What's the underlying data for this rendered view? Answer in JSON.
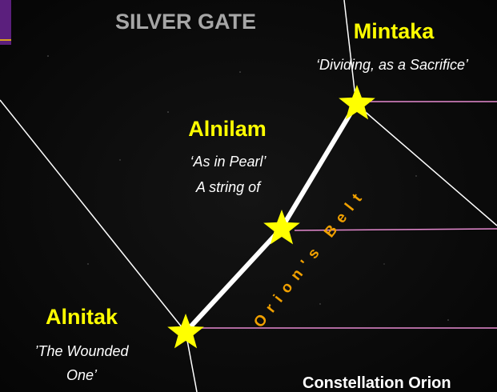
{
  "header": {
    "title": "SILVER GATE"
  },
  "stars": [
    {
      "name": "Mintaka",
      "meaning": [
        "‘Dividing, as a Sacrifice’"
      ]
    },
    {
      "name": "Alnilam",
      "meaning": [
        "‘As in Pearl’",
        "A string of"
      ]
    },
    {
      "name": "Alnitak",
      "meaning": [
        "’The Wounded",
        "One’"
      ]
    }
  ],
  "belt_label": "Orion's Belt",
  "caption": "Constellation Orion"
}
